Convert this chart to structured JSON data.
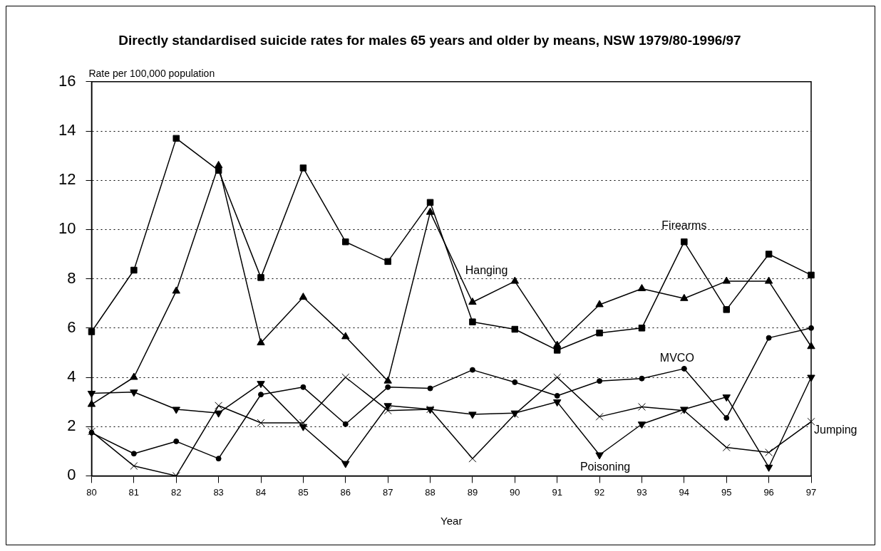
{
  "chart_data": {
    "type": "line",
    "title": "Directly standardised suicide rates for males 65 years and older by means, NSW 1979/80-1996/97",
    "xlabel": "Year",
    "ylabel": "Rate per 100,000 population",
    "categories": [
      "80",
      "81",
      "82",
      "83",
      "84",
      "85",
      "86",
      "87",
      "88",
      "89",
      "90",
      "91",
      "92",
      "93",
      "94",
      "95",
      "96",
      "97"
    ],
    "ylim": [
      0,
      16
    ],
    "yticks": [
      0,
      2,
      4,
      6,
      8,
      10,
      12,
      14,
      16
    ],
    "grid": "y",
    "legend": false,
    "line_style": "solid",
    "series": [
      {
        "name": "Firearms",
        "color": "#000000",
        "marker": "square",
        "values": [
          5.85,
          8.35,
          13.7,
          12.4,
          8.05,
          12.5,
          9.5,
          8.7,
          11.1,
          6.25,
          5.95,
          5.1,
          5.8,
          6.0,
          9.5,
          6.75,
          9.0,
          8.15
        ]
      },
      {
        "name": "Hanging",
        "color": "#000000",
        "marker": "triangle",
        "values": [
          2.9,
          4.0,
          7.5,
          12.6,
          5.4,
          7.25,
          5.65,
          3.85,
          10.7,
          7.05,
          7.9,
          5.3,
          6.95,
          7.6,
          7.2,
          7.9,
          7.9,
          5.25
        ]
      },
      {
        "name": "MVCO",
        "color": "#000000",
        "marker": "circle",
        "values": [
          1.75,
          0.9,
          1.4,
          0.7,
          3.3,
          3.6,
          2.1,
          3.6,
          3.55,
          4.3,
          3.8,
          3.25,
          3.85,
          3.95,
          4.35,
          2.35,
          5.6,
          6.0
        ]
      },
      {
        "name": "Poisoning",
        "color": "#000000",
        "marker": "triangle",
        "values": [
          3.35,
          3.4,
          2.7,
          2.55,
          3.75,
          2.0,
          0.5,
          2.85,
          2.7,
          2.5,
          2.55,
          3.0,
          0.85,
          2.1,
          2.7,
          3.2,
          0.35,
          4.0
        ]
      },
      {
        "name": "Jumping",
        "color": "#000000",
        "marker": "cross",
        "values": [
          1.8,
          0.4,
          0.0,
          2.85,
          2.15,
          2.15,
          4.0,
          2.65,
          2.7,
          0.7,
          2.5,
          4.0,
          2.4,
          2.8,
          2.65,
          1.15,
          0.95,
          2.2
        ]
      }
    ]
  }
}
